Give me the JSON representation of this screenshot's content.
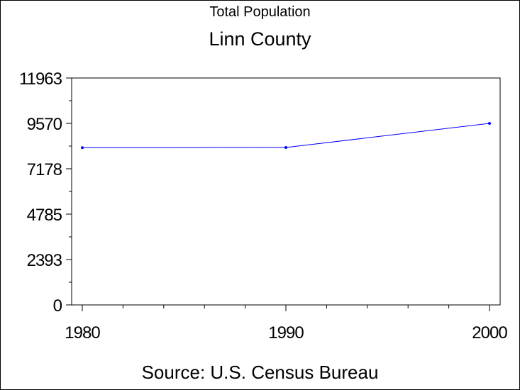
{
  "chart_data": {
    "type": "line",
    "subtitle": "Total Population",
    "title": "Linn County",
    "source": "Source: U.S. Census Bureau",
    "x": [
      1980,
      1990,
      2000
    ],
    "series": [
      {
        "values": [
          8290,
          8300,
          9570
        ],
        "color": "#0000ff"
      }
    ],
    "xticks": [
      "1980",
      "1990",
      "2000"
    ],
    "yticks": [
      "0",
      "2393",
      "4785",
      "7178",
      "9570",
      "11963"
    ],
    "ylim": [
      0,
      11963
    ],
    "xlim": [
      1980,
      2000
    ],
    "grid": false
  }
}
